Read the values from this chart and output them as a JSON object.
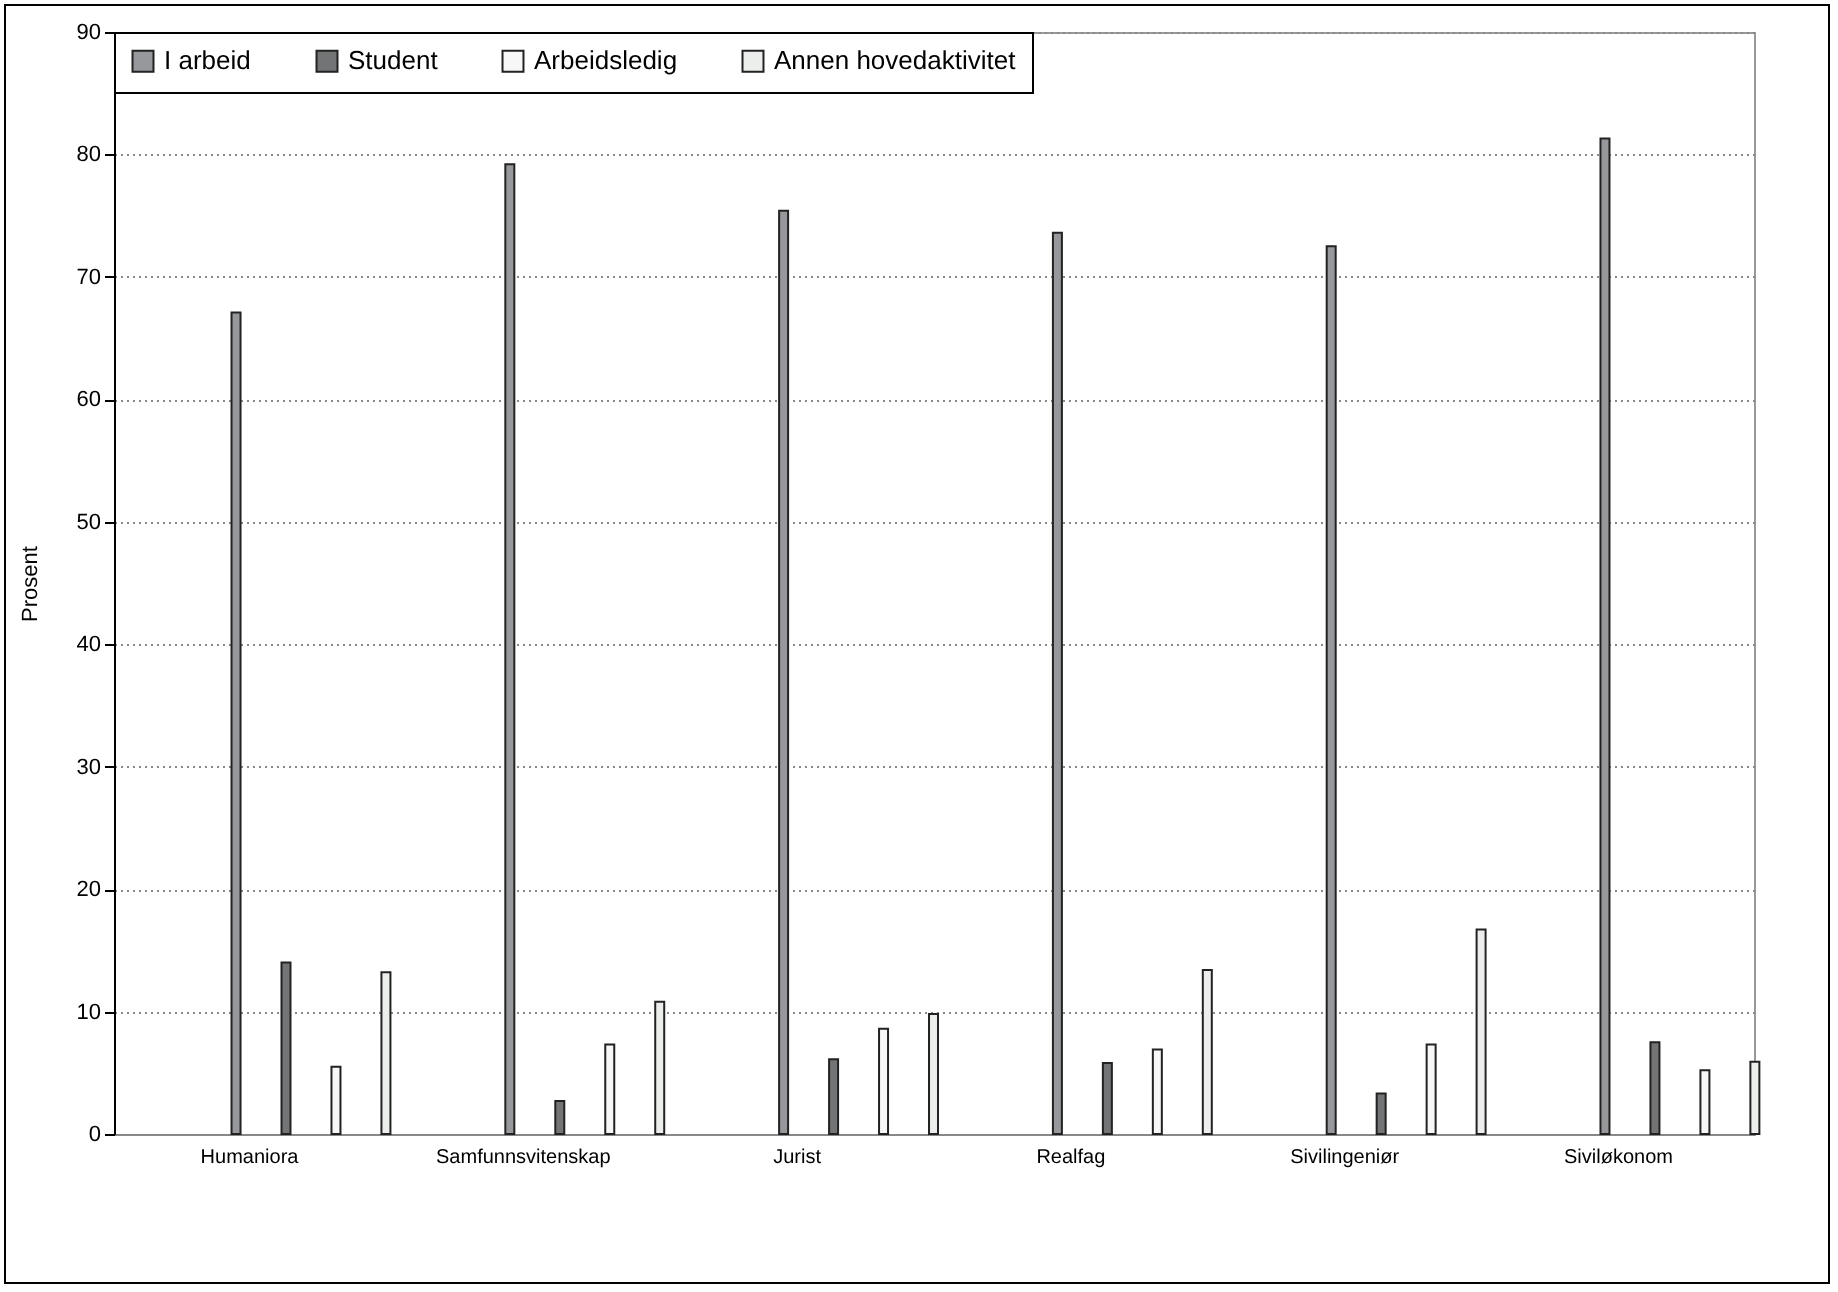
{
  "chart_data": {
    "type": "bar",
    "ylabel": "Prosent",
    "categories": [
      "Humaniora",
      "Samfunnsvitenskap",
      "Jurist",
      "Realfag",
      "Sivilingeniør",
      "Siviløkonom"
    ],
    "series": [
      {
        "name": "I arbeid",
        "color": "#97989c",
        "values": [
          67.1,
          79.2,
          75.4,
          73.6,
          72.5,
          81.3
        ]
      },
      {
        "name": "Student",
        "color": "#737476",
        "values": [
          14.0,
          2.7,
          6.1,
          5.8,
          3.3,
          7.5
        ]
      },
      {
        "name": "Arbeidsledig",
        "color": "#f7f7f7",
        "values": [
          5.5,
          7.3,
          8.6,
          6.9,
          7.3,
          5.2
        ]
      },
      {
        "name": "Annen hovedaktivitet",
        "color": "#eceeec",
        "values": [
          13.2,
          10.8,
          9.8,
          13.4,
          16.7,
          5.9
        ]
      }
    ],
    "ylim": [
      0,
      90
    ],
    "yticks": [
      0,
      10,
      20,
      30,
      40,
      50,
      60,
      70,
      80,
      90
    ],
    "grid": "y",
    "legend": "top"
  }
}
